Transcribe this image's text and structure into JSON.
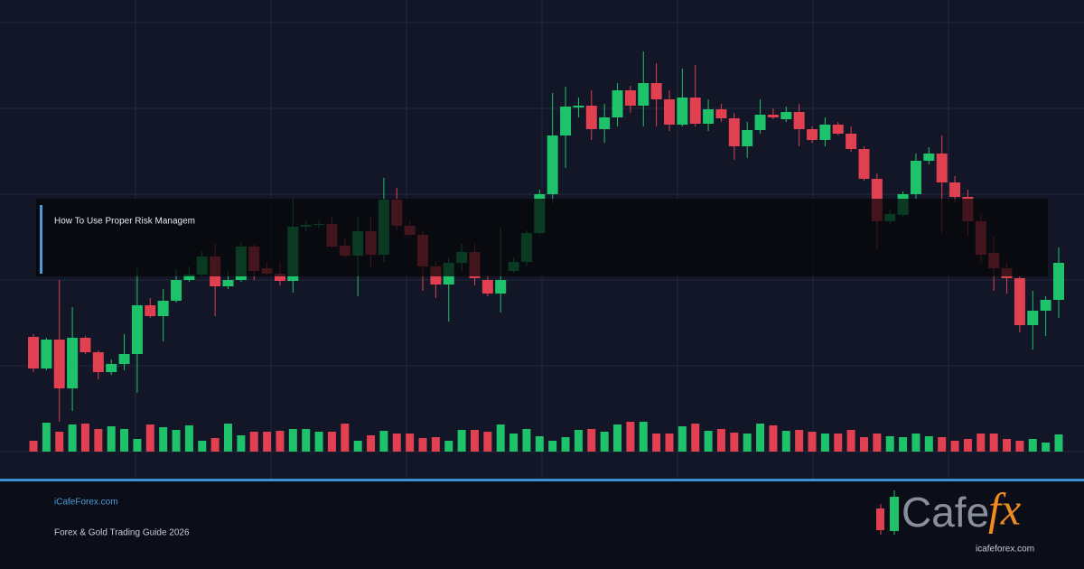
{
  "chart_data": {
    "type": "candlestick",
    "ylim": [
      0,
      475
    ],
    "up_color": "#1ec26a",
    "down_color": "#e0404f",
    "open": [
      127,
      92,
      124,
      70,
      126,
      110,
      88,
      97,
      108,
      162,
      150,
      167,
      190,
      196,
      216,
      183,
      190,
      227,
      203,
      197,
      189,
      249,
      251,
      252,
      228,
      217,
      244,
      218,
      279,
      250,
      240,
      205,
      185,
      209,
      221,
      190,
      175,
      200,
      210,
      242,
      285,
      350,
      381,
      383,
      357,
      370,
      400,
      383,
      408,
      390,
      362,
      392,
      363,
      379,
      369,
      338,
      356,
      373,
      368,
      376,
      357,
      345,
      362,
      352,
      335,
      302,
      255,
      262,
      285,
      322,
      330,
      298,
      282,
      255,
      220,
      203,
      192,
      140,
      156,
      168
    ],
    "high": [
      130,
      126,
      190,
      160,
      128,
      112,
      102,
      130,
      203,
      170,
      180,
      202,
      205,
      222,
      230,
      200,
      232,
      230,
      210,
      210,
      280,
      255,
      256,
      260,
      235,
      260,
      260,
      303,
      292,
      255,
      245,
      210,
      215,
      230,
      230,
      195,
      247,
      215,
      245,
      290,
      397,
      404,
      392,
      400,
      385,
      408,
      405,
      443,
      430,
      400,
      424,
      428,
      390,
      385,
      375,
      365,
      390,
      380,
      382,
      385,
      360,
      370,
      365,
      360,
      338,
      308,
      268,
      288,
      330,
      337,
      350,
      305,
      290,
      262,
      238,
      210,
      194,
      178,
      172,
      226
    ],
    "low": [
      88,
      90,
      33,
      45,
      108,
      80,
      85,
      90,
      65,
      148,
      122,
      165,
      188,
      194,
      150,
      180,
      188,
      190,
      195,
      184,
      176,
      244,
      248,
      225,
      215,
      172,
      204,
      210,
      245,
      238,
      178,
      170,
      144,
      200,
      184,
      172,
      154,
      198,
      205,
      240,
      275,
      314,
      370,
      345,
      342,
      360,
      375,
      360,
      360,
      355,
      360,
      360,
      355,
      365,
      323,
      325,
      352,
      368,
      365,
      338,
      342,
      338,
      350,
      332,
      300,
      224,
      252,
      260,
      280,
      318,
      242,
      275,
      238,
      210,
      178,
      175,
      132,
      113,
      128,
      148
    ],
    "close": [
      92,
      124,
      70,
      126,
      110,
      88,
      97,
      108,
      162,
      150,
      167,
      190,
      196,
      216,
      183,
      190,
      227,
      200,
      197,
      189,
      249,
      251,
      252,
      227,
      217,
      244,
      218,
      279,
      250,
      240,
      205,
      185,
      209,
      221,
      192,
      175,
      190,
      210,
      242,
      285,
      350,
      382,
      383,
      357,
      370,
      400,
      383,
      408,
      390,
      362,
      392,
      363,
      379,
      369,
      338,
      356,
      373,
      370,
      376,
      357,
      345,
      362,
      352,
      335,
      302,
      255,
      263,
      285,
      322,
      330,
      298,
      282,
      255,
      218,
      203,
      192,
      140,
      156,
      168,
      209
    ],
    "volume": [
      12,
      32,
      22,
      30,
      31,
      25,
      28,
      25,
      14,
      30,
      27,
      24,
      29,
      12,
      15,
      31,
      18,
      22,
      22,
      23,
      25,
      25,
      22,
      22,
      31,
      12,
      18,
      23,
      20,
      20,
      15,
      16,
      12,
      24,
      24,
      22,
      30,
      20,
      25,
      17,
      12,
      16,
      24,
      25,
      22,
      30,
      33,
      33,
      20,
      20,
      28,
      31,
      23,
      25,
      21,
      20,
      31,
      29,
      23,
      24,
      22,
      20,
      20,
      24,
      16,
      20,
      17,
      16,
      20,
      17,
      16,
      12,
      14,
      20,
      20,
      14,
      12,
      14,
      10,
      19
    ]
  },
  "banner": {
    "title": "How To Use Proper Risk Managem"
  },
  "footer": {
    "site": "iCafeForex.com",
    "subtitle": "Forex & Gold Trading Guide 2026"
  },
  "logo": {
    "word": "Cafe",
    "accent": "fx",
    "url": "icafeforex.com"
  }
}
